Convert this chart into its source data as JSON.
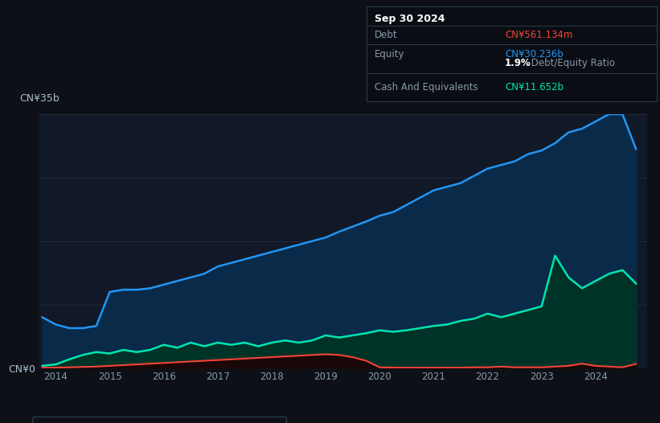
{
  "background_color": "#0d1117",
  "plot_bg_color": "#111827",
  "grid_color": "#1e2d3d",
  "equity_color": "#2196f3",
  "equity_fill": "#0a2a4a",
  "debt_color": "#f44336",
  "debt_fill": "#1a0505",
  "cash_color": "#00e5b0",
  "cash_fill": "#003328",
  "y_label_top": "CN¥35b",
  "y_label_bottom": "CN¥0",
  "ylim": [
    0,
    35
  ],
  "tooltip": {
    "date": "Sep 30 2024",
    "debt_label": "Debt",
    "debt_value": "CN¥561.134m",
    "debt_color": "#f44336",
    "equity_label": "Equity",
    "equity_value": "CN¥30.236b",
    "equity_color": "#2196f3",
    "ratio_value": "1.9%",
    "ratio_text": " Debt/Equity Ratio",
    "cash_label": "Cash And Equivalents",
    "cash_value": "CN¥11.652b",
    "cash_color": "#00e5b0",
    "bg_color": "#0a0e14",
    "border_color": "#2a3a4a",
    "label_color": "#8899aa",
    "title_color": "#ffffff"
  },
  "equity_x": [
    2013.75,
    2014.0,
    2014.25,
    2014.5,
    2014.75,
    2015.0,
    2015.25,
    2015.5,
    2015.75,
    2016.0,
    2016.25,
    2016.5,
    2016.75,
    2017.0,
    2017.25,
    2017.5,
    2017.75,
    2018.0,
    2018.25,
    2018.5,
    2018.75,
    2019.0,
    2019.25,
    2019.5,
    2019.75,
    2020.0,
    2020.25,
    2020.5,
    2020.75,
    2021.0,
    2021.25,
    2021.5,
    2021.75,
    2022.0,
    2022.25,
    2022.5,
    2022.75,
    2023.0,
    2023.25,
    2023.5,
    2023.75,
    2024.0,
    2024.25,
    2024.5,
    2024.75
  ],
  "equity_y": [
    7.0,
    6.0,
    5.5,
    5.5,
    5.8,
    10.5,
    10.8,
    10.8,
    11.0,
    11.5,
    12.0,
    12.5,
    13.0,
    14.0,
    14.5,
    15.0,
    15.5,
    16.0,
    16.5,
    17.0,
    17.5,
    18.0,
    18.8,
    19.5,
    20.2,
    21.0,
    21.5,
    22.5,
    23.5,
    24.5,
    25.0,
    25.5,
    26.5,
    27.5,
    28.0,
    28.5,
    29.5,
    30.0,
    31.0,
    32.5,
    33.0,
    34.0,
    35.0,
    35.0,
    30.2
  ],
  "cash_x": [
    2013.75,
    2014.0,
    2014.25,
    2014.5,
    2014.75,
    2015.0,
    2015.25,
    2015.5,
    2015.75,
    2016.0,
    2016.25,
    2016.5,
    2016.75,
    2017.0,
    2017.25,
    2017.5,
    2017.75,
    2018.0,
    2018.25,
    2018.5,
    2018.75,
    2019.0,
    2019.25,
    2019.5,
    2019.75,
    2020.0,
    2020.25,
    2020.5,
    2020.75,
    2021.0,
    2021.25,
    2021.5,
    2021.75,
    2022.0,
    2022.25,
    2022.5,
    2022.75,
    2023.0,
    2023.25,
    2023.5,
    2023.75,
    2024.0,
    2024.25,
    2024.5,
    2024.75
  ],
  "cash_y": [
    0.3,
    0.5,
    1.2,
    1.8,
    2.2,
    2.0,
    2.5,
    2.2,
    2.5,
    3.2,
    2.8,
    3.5,
    3.0,
    3.5,
    3.2,
    3.5,
    3.0,
    3.5,
    3.8,
    3.5,
    3.8,
    4.5,
    4.2,
    4.5,
    4.8,
    5.2,
    5.0,
    5.2,
    5.5,
    5.8,
    6.0,
    6.5,
    6.8,
    7.5,
    7.0,
    7.5,
    8.0,
    8.5,
    15.5,
    12.5,
    11.0,
    12.0,
    13.0,
    13.5,
    11.65
  ],
  "debt_x": [
    2013.75,
    2014.0,
    2014.25,
    2014.5,
    2014.75,
    2015.0,
    2015.25,
    2015.5,
    2015.75,
    2016.0,
    2016.25,
    2016.5,
    2016.75,
    2017.0,
    2017.25,
    2017.5,
    2017.75,
    2018.0,
    2018.25,
    2018.5,
    2018.75,
    2019.0,
    2019.25,
    2019.5,
    2019.75,
    2020.0,
    2020.25,
    2020.5,
    2020.75,
    2021.0,
    2021.25,
    2021.5,
    2021.75,
    2022.0,
    2022.25,
    2022.5,
    2022.75,
    2023.0,
    2023.25,
    2023.5,
    2023.75,
    2024.0,
    2024.25,
    2024.5,
    2024.75
  ],
  "debt_y": [
    0.05,
    0.05,
    0.1,
    0.15,
    0.2,
    0.3,
    0.4,
    0.5,
    0.6,
    0.7,
    0.8,
    0.9,
    1.0,
    1.1,
    1.2,
    1.3,
    1.4,
    1.5,
    1.6,
    1.7,
    1.8,
    1.9,
    1.8,
    1.5,
    1.0,
    0.1,
    0.05,
    0.05,
    0.05,
    0.05,
    0.05,
    0.05,
    0.1,
    0.1,
    0.2,
    0.1,
    0.1,
    0.1,
    0.2,
    0.3,
    0.6,
    0.3,
    0.2,
    0.1,
    0.56
  ]
}
